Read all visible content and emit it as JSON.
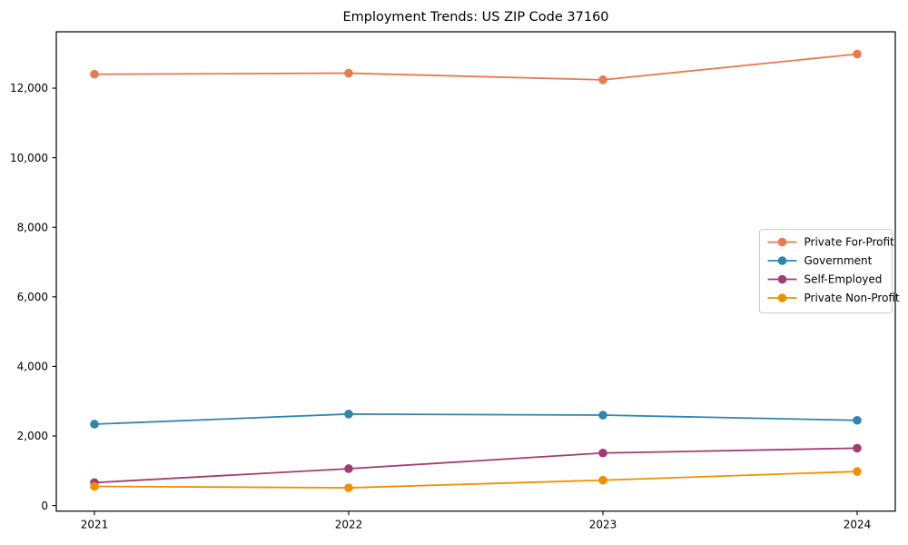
{
  "title": "Employment Trends: US ZIP Code 37160",
  "chart_data": {
    "type": "line",
    "title": "Employment Trends: US ZIP Code 37160",
    "xlabel": "",
    "ylabel": "",
    "x": [
      2021,
      2022,
      2023,
      2024
    ],
    "xtick_labels": [
      "2021",
      "2022",
      "2023",
      "2024"
    ],
    "yticks": [
      0,
      2000,
      4000,
      6000,
      8000,
      10000,
      12000
    ],
    "ytick_labels": [
      "0",
      "2,000",
      "4,000",
      "6,000",
      "8,000",
      "10,000",
      "12,000"
    ],
    "ylim": [
      -160,
      13620
    ],
    "grid": false,
    "marker": "circle",
    "legend_position": "center right",
    "background_color": "#ffffff",
    "axis_color": "#000000",
    "legend_border_color": "#cccccc",
    "series": [
      {
        "name": "Private For-Profit",
        "color": "#E87A4D",
        "values": [
          12400,
          12430,
          12240,
          12980
        ]
      },
      {
        "name": "Government",
        "color": "#2E86AB",
        "values": [
          2340,
          2630,
          2600,
          2450
        ]
      },
      {
        "name": "Self-Employed",
        "color": "#A23B72",
        "values": [
          660,
          1060,
          1510,
          1650
        ]
      },
      {
        "name": "Private Non-Profit",
        "color": "#F18F01",
        "values": [
          550,
          510,
          730,
          980
        ]
      }
    ]
  }
}
